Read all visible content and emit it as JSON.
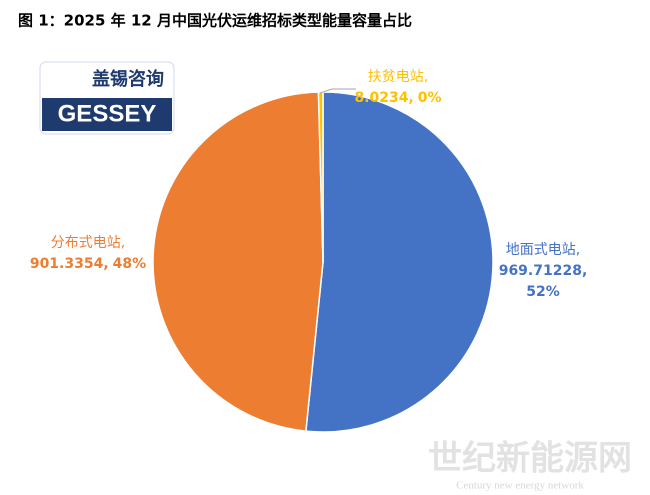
{
  "chart_data": {
    "type": "pie",
    "title": "图 1：2025 年 12 月中国光伏运维招标类型能量容量占比",
    "logo": {
      "name": "盖锡咨询",
      "brand": "GESSEY"
    },
    "watermark": {
      "name": "世纪新能源网",
      "subtitle": "Century new energy network"
    },
    "categories": [
      "地面式电站,",
      "分布式电站,",
      "扶贫电站,"
    ],
    "values": [
      969.71228,
      901.3354,
      8.0234
    ],
    "value_labels": [
      "969.71228,",
      "901.3354,",
      "8.0234,"
    ],
    "percent_labels": [
      "52%",
      "48%",
      "0%"
    ],
    "colors": [
      "#4472c4",
      "#ed7d31",
      "#ffc000"
    ]
  }
}
